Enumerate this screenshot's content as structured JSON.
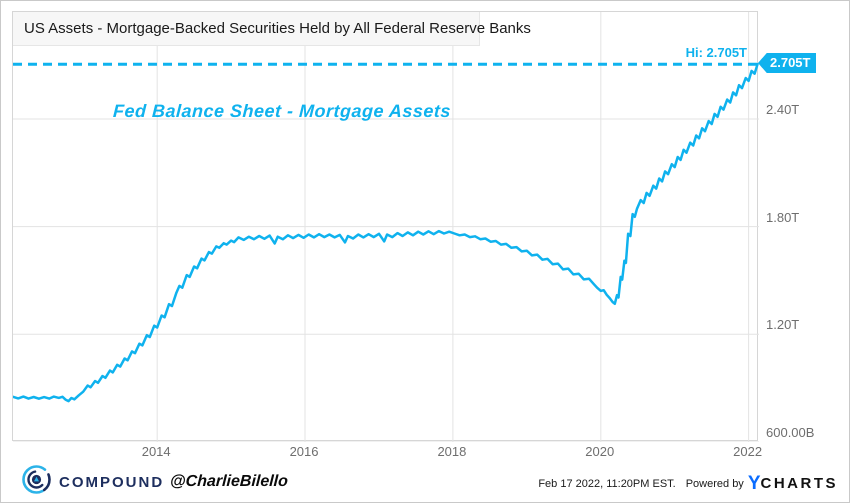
{
  "header": {
    "title": "US Assets - Mortgage-Backed Securities Held by All Federal Reserve Banks"
  },
  "annotation": {
    "text": "Fed Balance Sheet - Mortgage Assets"
  },
  "hi_marker": {
    "label": "Hi: 2.705T",
    "badge": "2.705T",
    "value": 2.705
  },
  "colors": {
    "accent": "#0fb2ee",
    "navy": "#1d2e5e",
    "ycharts_blue": "#0a6cff",
    "grid": "#e3e3e3",
    "axis_text": "#6e6e6e"
  },
  "footer": {
    "brand": "COMPOUND",
    "handle": "@CharlieBilello",
    "timestamp": "Feb 17 2022, 11:20PM EST.",
    "powered_by": "Powered by",
    "ycharts_y": "Y",
    "ycharts_rest": "CHARTS"
  },
  "chart_data": {
    "type": "line",
    "title": "US Assets - Mortgage-Backed Securities Held by All Federal Reserve Banks",
    "unit": "USD (T = trillions, B = billions)",
    "grid": true,
    "legend": null,
    "x_range": [
      2012.05,
      2022.14
    ],
    "y_range": [
      0.6,
      2.996
    ],
    "x_ticks": [
      2014,
      2016,
      2018,
      2020,
      2022
    ],
    "x_tick_labels": [
      "2014",
      "2016",
      "2018",
      "2020",
      "2022"
    ],
    "y_ticks": [
      2.4,
      1.8,
      1.2,
      0.6
    ],
    "y_tick_labels": [
      "2.40T",
      "1.80T",
      "1.20T",
      "600.00B"
    ],
    "high": {
      "value": 2.705,
      "label": "Hi: 2.705T"
    },
    "series": [
      {
        "name": "MBS Held by All Federal Reserve Banks",
        "points": [
          [
            2012.05,
            0.852
          ],
          [
            2012.12,
            0.843
          ],
          [
            2012.19,
            0.853
          ],
          [
            2012.26,
            0.842
          ],
          [
            2012.33,
            0.851
          ],
          [
            2012.4,
            0.841
          ],
          [
            2012.47,
            0.85
          ],
          [
            2012.54,
            0.842
          ],
          [
            2012.6,
            0.853
          ],
          [
            2012.67,
            0.846
          ],
          [
            2012.72,
            0.852
          ],
          [
            2012.76,
            0.836
          ],
          [
            2012.8,
            0.828
          ],
          [
            2012.84,
            0.845
          ],
          [
            2012.88,
            0.838
          ],
          [
            2012.94,
            0.86
          ],
          [
            2013.0,
            0.88
          ],
          [
            2013.06,
            0.915
          ],
          [
            2013.1,
            0.905
          ],
          [
            2013.16,
            0.94
          ],
          [
            2013.2,
            0.93
          ],
          [
            2013.26,
            0.968
          ],
          [
            2013.3,
            0.958
          ],
          [
            2013.36,
            0.998
          ],
          [
            2013.4,
            0.988
          ],
          [
            2013.46,
            1.03
          ],
          [
            2013.5,
            1.02
          ],
          [
            2013.56,
            1.065
          ],
          [
            2013.6,
            1.055
          ],
          [
            2013.66,
            1.105
          ],
          [
            2013.7,
            1.095
          ],
          [
            2013.76,
            1.148
          ],
          [
            2013.8,
            1.138
          ],
          [
            2013.86,
            1.195
          ],
          [
            2013.9,
            1.185
          ],
          [
            2013.96,
            1.248
          ],
          [
            2014.0,
            1.238
          ],
          [
            2014.06,
            1.305
          ],
          [
            2014.1,
            1.295
          ],
          [
            2014.16,
            1.368
          ],
          [
            2014.2,
            1.358
          ],
          [
            2014.26,
            1.432
          ],
          [
            2014.3,
            1.47
          ],
          [
            2014.34,
            1.46
          ],
          [
            2014.4,
            1.53
          ],
          [
            2014.44,
            1.52
          ],
          [
            2014.5,
            1.578
          ],
          [
            2014.54,
            1.568
          ],
          [
            2014.6,
            1.622
          ],
          [
            2014.64,
            1.612
          ],
          [
            2014.7,
            1.658
          ],
          [
            2014.74,
            1.65
          ],
          [
            2014.8,
            1.69
          ],
          [
            2014.84,
            1.682
          ],
          [
            2014.9,
            1.708
          ],
          [
            2014.94,
            1.7
          ],
          [
            2015.0,
            1.722
          ],
          [
            2015.04,
            1.714
          ],
          [
            2015.1,
            1.74
          ],
          [
            2015.17,
            1.726
          ],
          [
            2015.24,
            1.744
          ],
          [
            2015.31,
            1.73
          ],
          [
            2015.38,
            1.748
          ],
          [
            2015.45,
            1.732
          ],
          [
            2015.52,
            1.75
          ],
          [
            2015.59,
            1.706
          ],
          [
            2015.63,
            1.744
          ],
          [
            2015.7,
            1.73
          ],
          [
            2015.77,
            1.752
          ],
          [
            2015.84,
            1.736
          ],
          [
            2015.91,
            1.754
          ],
          [
            2015.98,
            1.738
          ],
          [
            2016.05,
            1.756
          ],
          [
            2016.12,
            1.74
          ],
          [
            2016.19,
            1.758
          ],
          [
            2016.26,
            1.742
          ],
          [
            2016.33,
            1.756
          ],
          [
            2016.4,
            1.74
          ],
          [
            2016.47,
            1.754
          ],
          [
            2016.54,
            1.712
          ],
          [
            2016.58,
            1.748
          ],
          [
            2016.65,
            1.734
          ],
          [
            2016.72,
            1.756
          ],
          [
            2016.79,
            1.74
          ],
          [
            2016.86,
            1.758
          ],
          [
            2016.93,
            1.742
          ],
          [
            2017.0,
            1.76
          ],
          [
            2017.07,
            1.718
          ],
          [
            2017.11,
            1.756
          ],
          [
            2017.18,
            1.742
          ],
          [
            2017.25,
            1.764
          ],
          [
            2017.32,
            1.748
          ],
          [
            2017.39,
            1.768
          ],
          [
            2017.46,
            1.752
          ],
          [
            2017.53,
            1.772
          ],
          [
            2017.6,
            1.756
          ],
          [
            2017.67,
            1.774
          ],
          [
            2017.74,
            1.758
          ],
          [
            2017.81,
            1.775
          ],
          [
            2017.88,
            1.762
          ],
          [
            2017.95,
            1.772
          ],
          [
            2018.02,
            1.762
          ],
          [
            2018.09,
            1.752
          ],
          [
            2018.16,
            1.756
          ],
          [
            2018.23,
            1.742
          ],
          [
            2018.3,
            1.746
          ],
          [
            2018.37,
            1.73
          ],
          [
            2018.44,
            1.734
          ],
          [
            2018.51,
            1.716
          ],
          [
            2018.58,
            1.72
          ],
          [
            2018.65,
            1.7
          ],
          [
            2018.72,
            1.704
          ],
          [
            2018.79,
            1.682
          ],
          [
            2018.86,
            1.686
          ],
          [
            2018.93,
            1.662
          ],
          [
            2019.0,
            1.666
          ],
          [
            2019.07,
            1.64
          ],
          [
            2019.14,
            1.644
          ],
          [
            2019.21,
            1.616
          ],
          [
            2019.28,
            1.62
          ],
          [
            2019.35,
            1.59
          ],
          [
            2019.42,
            1.594
          ],
          [
            2019.49,
            1.562
          ],
          [
            2019.56,
            1.566
          ],
          [
            2019.63,
            1.534
          ],
          [
            2019.7,
            1.538
          ],
          [
            2019.77,
            1.506
          ],
          [
            2019.84,
            1.51
          ],
          [
            2019.91,
            1.478
          ],
          [
            2019.95,
            1.46
          ],
          [
            2020.0,
            1.442
          ],
          [
            2020.04,
            1.446
          ],
          [
            2020.08,
            1.42
          ],
          [
            2020.12,
            1.402
          ],
          [
            2020.16,
            1.38
          ],
          [
            2020.19,
            1.37
          ],
          [
            2020.22,
            1.418
          ],
          [
            2020.24,
            1.405
          ],
          [
            2020.27,
            1.52
          ],
          [
            2020.29,
            1.505
          ],
          [
            2020.32,
            1.61
          ],
          [
            2020.34,
            1.598
          ],
          [
            2020.37,
            1.76
          ],
          [
            2020.4,
            1.748
          ],
          [
            2020.43,
            1.87
          ],
          [
            2020.46,
            1.855
          ],
          [
            2020.49,
            1.9
          ],
          [
            2020.54,
            1.948
          ],
          [
            2020.58,
            1.932
          ],
          [
            2020.62,
            1.988
          ],
          [
            2020.66,
            1.972
          ],
          [
            2020.71,
            2.028
          ],
          [
            2020.75,
            2.012
          ],
          [
            2020.79,
            2.068
          ],
          [
            2020.83,
            2.052
          ],
          [
            2020.87,
            2.108
          ],
          [
            2020.91,
            2.092
          ],
          [
            2020.96,
            2.148
          ],
          [
            2021.0,
            2.132
          ],
          [
            2021.04,
            2.188
          ],
          [
            2021.08,
            2.172
          ],
          [
            2021.12,
            2.228
          ],
          [
            2021.16,
            2.212
          ],
          [
            2021.21,
            2.268
          ],
          [
            2021.25,
            2.252
          ],
          [
            2021.29,
            2.308
          ],
          [
            2021.33,
            2.292
          ],
          [
            2021.37,
            2.348
          ],
          [
            2021.41,
            2.332
          ],
          [
            2021.46,
            2.388
          ],
          [
            2021.5,
            2.372
          ],
          [
            2021.54,
            2.428
          ],
          [
            2021.58,
            2.412
          ],
          [
            2021.62,
            2.468
          ],
          [
            2021.66,
            2.452
          ],
          [
            2021.71,
            2.508
          ],
          [
            2021.75,
            2.492
          ],
          [
            2021.79,
            2.548
          ],
          [
            2021.83,
            2.532
          ],
          [
            2021.87,
            2.588
          ],
          [
            2021.91,
            2.572
          ],
          [
            2021.96,
            2.628
          ],
          [
            2022.0,
            2.612
          ],
          [
            2022.04,
            2.668
          ],
          [
            2022.08,
            2.652
          ],
          [
            2022.12,
            2.705
          ]
        ]
      }
    ]
  }
}
